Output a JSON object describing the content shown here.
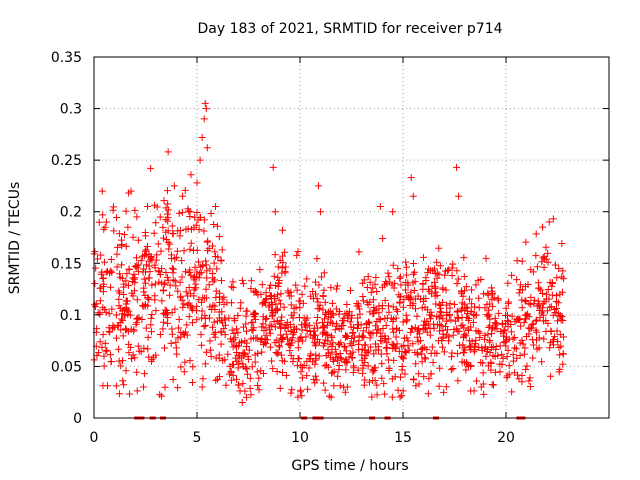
{
  "chart_data": {
    "type": "scatter",
    "title": "Day 183 of 2021, SRMTID for receiver p714",
    "xlabel": "GPS time / hours",
    "ylabel": "SRMTID / TECUs",
    "xlim": [
      0,
      25
    ],
    "ylim": [
      0,
      0.35
    ],
    "x_ticks": [
      0,
      5,
      10,
      15,
      20
    ],
    "x_tick_labels": [
      "0",
      "5",
      "10",
      "15",
      "20"
    ],
    "y_ticks": [
      0,
      0.05,
      0.1,
      0.15,
      0.2,
      0.25,
      0.3,
      0.35
    ],
    "y_tick_labels": [
      "0",
      "0.05",
      "0.1",
      "0.15",
      "0.2",
      "0.25",
      "0.3",
      "0.35"
    ],
    "grid": true,
    "marker": "plus",
    "color": "#ff0000",
    "sampling": {
      "x_start": 0.0,
      "x_end": 22.8,
      "samples_per_hour": 75,
      "seed": 183
    },
    "envelope": [
      {
        "x": 0.0,
        "center": 0.105,
        "spread": 0.05
      },
      {
        "x": 1.0,
        "center": 0.11,
        "spread": 0.055
      },
      {
        "x": 2.0,
        "center": 0.115,
        "spread": 0.06
      },
      {
        "x": 2.8,
        "center": 0.13,
        "spread": 0.06
      },
      {
        "x": 4.0,
        "center": 0.125,
        "spread": 0.06
      },
      {
        "x": 5.2,
        "center": 0.14,
        "spread": 0.07
      },
      {
        "x": 6.0,
        "center": 0.1,
        "spread": 0.05
      },
      {
        "x": 7.0,
        "center": 0.07,
        "spread": 0.035
      },
      {
        "x": 8.0,
        "center": 0.075,
        "spread": 0.035
      },
      {
        "x": 9.0,
        "center": 0.1,
        "spread": 0.045
      },
      {
        "x": 10.0,
        "center": 0.08,
        "spread": 0.04
      },
      {
        "x": 11.0,
        "center": 0.085,
        "spread": 0.04
      },
      {
        "x": 12.0,
        "center": 0.075,
        "spread": 0.035
      },
      {
        "x": 13.0,
        "center": 0.08,
        "spread": 0.04
      },
      {
        "x": 14.0,
        "center": 0.09,
        "spread": 0.045
      },
      {
        "x": 15.5,
        "center": 0.09,
        "spread": 0.045
      },
      {
        "x": 17.0,
        "center": 0.1,
        "spread": 0.045
      },
      {
        "x": 18.0,
        "center": 0.085,
        "spread": 0.04
      },
      {
        "x": 19.0,
        "center": 0.075,
        "spread": 0.035
      },
      {
        "x": 20.0,
        "center": 0.08,
        "spread": 0.035
      },
      {
        "x": 21.0,
        "center": 0.085,
        "spread": 0.04
      },
      {
        "x": 22.0,
        "center": 0.11,
        "spread": 0.05
      },
      {
        "x": 22.8,
        "center": 0.1,
        "spread": 0.045
      }
    ],
    "peaks": [
      {
        "x": 0.4,
        "y": 0.22
      },
      {
        "x": 0.6,
        "y": 0.19
      },
      {
        "x": 1.8,
        "y": 0.22
      },
      {
        "x": 2.6,
        "y": 0.205
      },
      {
        "x": 2.75,
        "y": 0.242
      },
      {
        "x": 3.6,
        "y": 0.258
      },
      {
        "x": 3.9,
        "y": 0.225
      },
      {
        "x": 4.3,
        "y": 0.215
      },
      {
        "x": 5.0,
        "y": 0.228
      },
      {
        "x": 5.15,
        "y": 0.25
      },
      {
        "x": 5.25,
        "y": 0.272
      },
      {
        "x": 5.35,
        "y": 0.29
      },
      {
        "x": 5.4,
        "y": 0.305
      },
      {
        "x": 5.45,
        "y": 0.3
      },
      {
        "x": 5.5,
        "y": 0.262
      },
      {
        "x": 5.9,
        "y": 0.205
      },
      {
        "x": 8.7,
        "y": 0.243
      },
      {
        "x": 8.8,
        "y": 0.2
      },
      {
        "x": 10.9,
        "y": 0.225
      },
      {
        "x": 11.0,
        "y": 0.2
      },
      {
        "x": 13.9,
        "y": 0.205
      },
      {
        "x": 14.5,
        "y": 0.2
      },
      {
        "x": 15.4,
        "y": 0.233
      },
      {
        "x": 15.5,
        "y": 0.215
      },
      {
        "x": 17.6,
        "y": 0.243
      },
      {
        "x": 17.7,
        "y": 0.215
      },
      {
        "x": 22.3,
        "y": 0.193
      },
      {
        "x": 22.1,
        "y": 0.19
      }
    ],
    "lows": [
      {
        "x": 2.4,
        "y": 0.03
      },
      {
        "x": 7.2,
        "y": 0.015
      },
      {
        "x": 7.4,
        "y": 0.02
      },
      {
        "x": 12.2,
        "y": 0.025
      },
      {
        "x": 12.3,
        "y": 0.03
      },
      {
        "x": 18.8,
        "y": 0.03
      }
    ],
    "zero_values_x": [
      2.1,
      2.3,
      2.85,
      3.35,
      10.2,
      10.75,
      11.0,
      13.5,
      14.25,
      16.6,
      20.65,
      20.8
    ]
  }
}
